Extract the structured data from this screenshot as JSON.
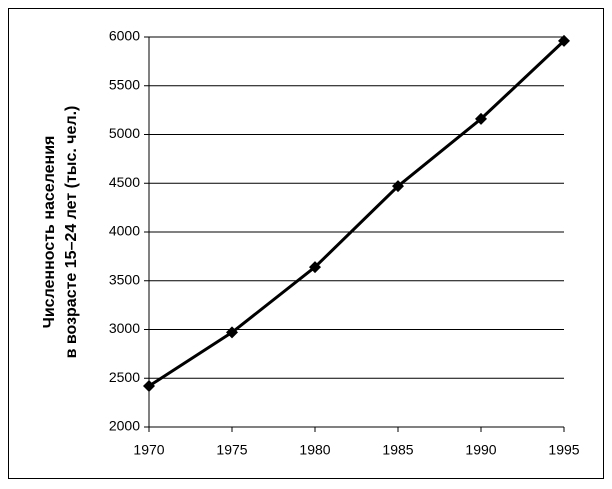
{
  "chart_data": {
    "type": "line",
    "y_label": [
      "Численность населения",
      "в возрасте 15–24 лет (тыс. чел.)"
    ],
    "x": [
      1970,
      1975,
      1980,
      1985,
      1990,
      1995
    ],
    "series": [
      {
        "color": "#000000",
        "values": [
          2420,
          2970,
          3640,
          4470,
          5160,
          5960
        ]
      }
    ],
    "xlim": [
      1970,
      1995
    ],
    "xticks": [
      1970,
      1975,
      1980,
      1985,
      1990,
      1995
    ],
    "ylim": [
      2000,
      6000
    ],
    "yticks": [
      2000,
      2500,
      3000,
      3500,
      4000,
      4500,
      5000,
      5500,
      6000
    ],
    "grid": true
  }
}
